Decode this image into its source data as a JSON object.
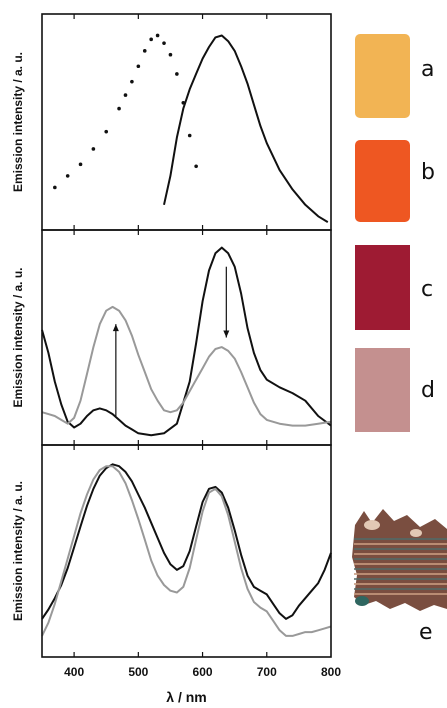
{
  "chart_data": [
    {
      "type": "line",
      "panel": "top",
      "ylabel": "Emission intensity / a. u.",
      "xlim": [
        350,
        800
      ],
      "ylim": [
        0,
        1.05
      ],
      "series": [
        {
          "style": "dotted",
          "color": "#111111",
          "x": [
            370,
            390,
            410,
            430,
            450,
            470,
            480,
            490,
            500,
            510,
            520,
            530,
            540,
            550,
            560,
            570,
            580,
            590
          ],
          "y": [
            0.19,
            0.25,
            0.31,
            0.39,
            0.48,
            0.6,
            0.67,
            0.74,
            0.82,
            0.9,
            0.96,
            0.98,
            0.94,
            0.88,
            0.78,
            0.63,
            0.46,
            0.3
          ]
        },
        {
          "style": "solid",
          "color": "#111111",
          "x": [
            540,
            550,
            560,
            570,
            580,
            590,
            600,
            610,
            620,
            630,
            640,
            650,
            660,
            670,
            680,
            690,
            700,
            720,
            740,
            760,
            780,
            795
          ],
          "y": [
            0.1,
            0.25,
            0.45,
            0.6,
            0.7,
            0.78,
            0.86,
            0.92,
            0.97,
            0.98,
            0.95,
            0.9,
            0.82,
            0.73,
            0.62,
            0.51,
            0.42,
            0.28,
            0.18,
            0.1,
            0.04,
            0.01
          ]
        }
      ]
    },
    {
      "type": "line",
      "panel": "middle",
      "ylabel": "Emission intensity / a. u.",
      "xlim": [
        350,
        800
      ],
      "ylim": [
        0,
        1.05
      ],
      "series": [
        {
          "style": "solid",
          "color": "#111111",
          "x": [
            350,
            360,
            370,
            380,
            390,
            400,
            410,
            420,
            430,
            440,
            450,
            460,
            470,
            480,
            490,
            500,
            520,
            540,
            560,
            580,
            590,
            600,
            610,
            620,
            630,
            640,
            650,
            660,
            670,
            680,
            690,
            700,
            720,
            740,
            760,
            780,
            800
          ],
          "y": [
            0.57,
            0.45,
            0.3,
            0.18,
            0.09,
            0.06,
            0.08,
            0.12,
            0.15,
            0.16,
            0.15,
            0.13,
            0.1,
            0.07,
            0.05,
            0.03,
            0.02,
            0.03,
            0.08,
            0.3,
            0.5,
            0.72,
            0.88,
            0.97,
            1.0,
            0.97,
            0.9,
            0.76,
            0.58,
            0.45,
            0.36,
            0.31,
            0.27,
            0.24,
            0.2,
            0.12,
            0.07
          ]
        },
        {
          "style": "solid",
          "color": "#999999",
          "x": [
            350,
            360,
            370,
            380,
            390,
            400,
            410,
            420,
            430,
            440,
            450,
            460,
            470,
            480,
            490,
            500,
            510,
            520,
            530,
            540,
            550,
            560,
            570,
            580,
            590,
            600,
            610,
            620,
            630,
            640,
            650,
            660,
            670,
            680,
            690,
            700,
            720,
            740,
            760,
            780,
            800
          ],
          "y": [
            0.14,
            0.13,
            0.12,
            0.1,
            0.08,
            0.11,
            0.2,
            0.34,
            0.48,
            0.6,
            0.67,
            0.69,
            0.67,
            0.62,
            0.54,
            0.44,
            0.35,
            0.26,
            0.2,
            0.15,
            0.14,
            0.15,
            0.19,
            0.25,
            0.31,
            0.37,
            0.43,
            0.47,
            0.48,
            0.46,
            0.42,
            0.35,
            0.27,
            0.19,
            0.13,
            0.1,
            0.08,
            0.07,
            0.07,
            0.08,
            0.09
          ]
        }
      ]
    },
    {
      "type": "line",
      "panel": "bottom",
      "ylabel": "Emission intensity / a. u.",
      "xlim": [
        350,
        800
      ],
      "ylim": [
        0,
        1.05
      ],
      "xlabel": "λ / nm",
      "xticks": [
        400,
        500,
        600,
        700,
        800
      ],
      "series": [
        {
          "style": "solid",
          "color": "#111111",
          "x": [
            350,
            360,
            370,
            380,
            390,
            400,
            410,
            420,
            430,
            440,
            450,
            460,
            470,
            480,
            490,
            500,
            510,
            520,
            530,
            540,
            550,
            560,
            570,
            580,
            590,
            600,
            610,
            620,
            630,
            640,
            650,
            660,
            670,
            680,
            690,
            700,
            710,
            720,
            730,
            740,
            750,
            760,
            770,
            780,
            790,
            800
          ],
          "y": [
            0.17,
            0.22,
            0.28,
            0.35,
            0.44,
            0.55,
            0.66,
            0.77,
            0.86,
            0.93,
            0.97,
            0.99,
            0.98,
            0.95,
            0.9,
            0.83,
            0.76,
            0.68,
            0.6,
            0.52,
            0.46,
            0.43,
            0.45,
            0.53,
            0.66,
            0.79,
            0.86,
            0.87,
            0.84,
            0.76,
            0.64,
            0.51,
            0.4,
            0.34,
            0.32,
            0.3,
            0.25,
            0.2,
            0.17,
            0.19,
            0.24,
            0.28,
            0.32,
            0.36,
            0.43,
            0.52
          ]
        },
        {
          "style": "solid",
          "color": "#999999",
          "x": [
            350,
            360,
            370,
            380,
            390,
            400,
            410,
            420,
            430,
            440,
            450,
            460,
            470,
            480,
            490,
            500,
            510,
            520,
            530,
            540,
            550,
            560,
            570,
            580,
            590,
            600,
            610,
            620,
            630,
            640,
            650,
            660,
            670,
            680,
            690,
            700,
            710,
            720,
            730,
            740,
            750,
            760,
            770,
            780,
            790,
            800
          ],
          "y": [
            0.08,
            0.15,
            0.25,
            0.37,
            0.49,
            0.61,
            0.73,
            0.83,
            0.91,
            0.96,
            0.98,
            0.98,
            0.95,
            0.89,
            0.8,
            0.7,
            0.59,
            0.48,
            0.4,
            0.35,
            0.32,
            0.31,
            0.34,
            0.44,
            0.59,
            0.74,
            0.84,
            0.86,
            0.82,
            0.72,
            0.58,
            0.44,
            0.33,
            0.26,
            0.23,
            0.21,
            0.16,
            0.11,
            0.08,
            0.08,
            0.09,
            0.1,
            0.1,
            0.11,
            0.12,
            0.13
          ]
        }
      ]
    }
  ],
  "labels": [
    "a",
    "b",
    "c",
    "d",
    "e"
  ],
  "swatch_colors": [
    "#F2B454",
    "#EE5722",
    "#9E1B33",
    "#C4908F"
  ]
}
